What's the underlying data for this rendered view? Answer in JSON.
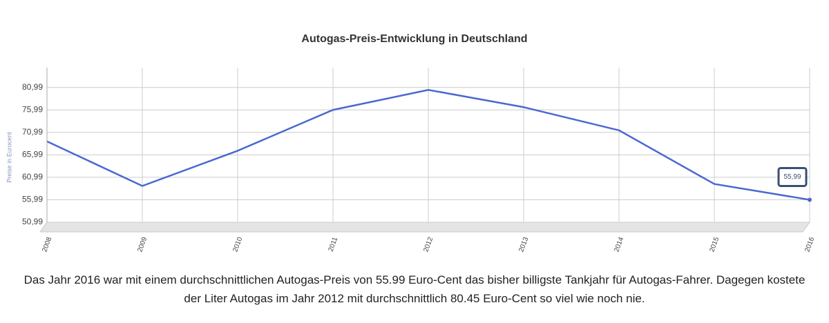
{
  "chart_data": {
    "type": "line",
    "title": "Autogas-Preis-Entwicklung in Deutschland",
    "y_label": "Preise in Eurocent",
    "x": [
      2008,
      2009,
      2010,
      2011,
      2012,
      2013,
      2014,
      2015,
      2016
    ],
    "xlim": [
      2008,
      2016
    ],
    "series": [
      {
        "name": "Autogas-Preis",
        "color": "#4a68d0",
        "values": [
          68.99,
          59.07,
          66.9,
          75.99,
          80.45,
          76.6,
          71.45,
          59.5,
          55.99
        ],
        "value_labels": [
          null,
          null,
          null,
          null,
          null,
          null,
          null,
          null,
          "55,99"
        ]
      }
    ],
    "ylim": [
      50.99,
      85.4
    ],
    "yticks": [
      {
        "value": 50.99,
        "label": "50,99"
      },
      {
        "value": 55.99,
        "label": "55,99"
      },
      {
        "value": 60.99,
        "label": "60,99"
      },
      {
        "value": 65.99,
        "label": "65,99"
      },
      {
        "value": 70.99,
        "label": "70,99"
      },
      {
        "value": 75.99,
        "label": "75,99"
      },
      {
        "value": 80.99,
        "label": "80,99"
      }
    ],
    "grid": true
  },
  "description": "Das Jahr 2016 war mit einem durchschnittlichen Autogas-Preis von 55.99 Euro-Cent das bisher billigste Tankjahr für Autogas-Fahrer. Dagegen kostete der Liter Autogas im Jahr 2012 mit durchschnittlich 80.45 Euro-Cent so viel wie noch nie."
}
